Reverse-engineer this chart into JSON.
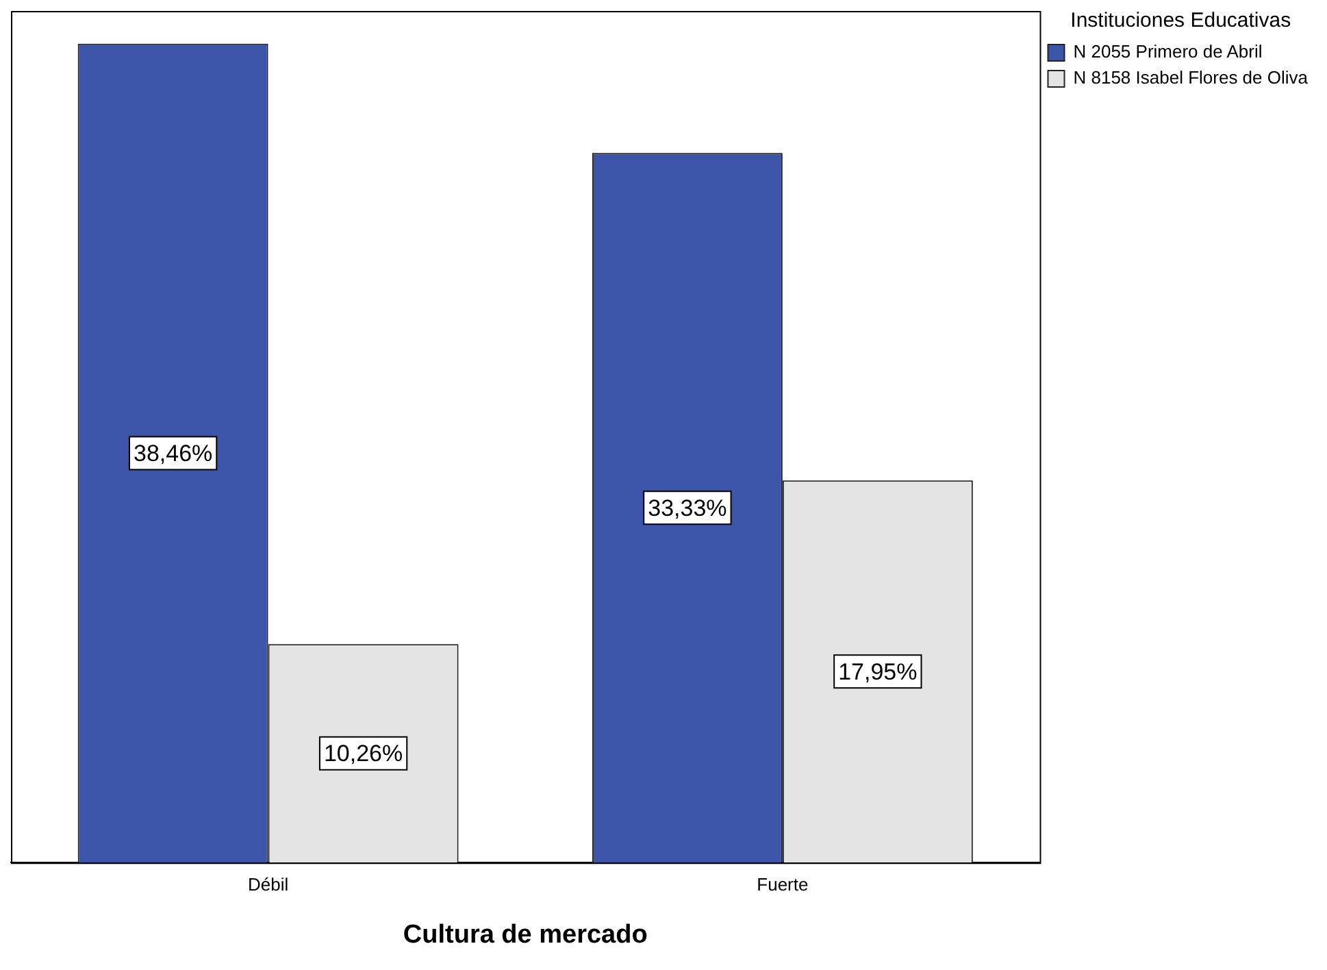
{
  "chart_data": {
    "type": "bar",
    "xlabel": "Cultura de mercado",
    "legend_title": "Instituciones Educativas",
    "categories": [
      "Débil",
      "Fuerte"
    ],
    "series": [
      {
        "name": "N 2055 Primero de Abril",
        "color": "#3c55a8",
        "values": [
          38.46,
          33.33
        ],
        "value_labels": [
          "38,46%",
          "33,33%"
        ]
      },
      {
        "name": "N 8158 Isabel Flores de Oliva",
        "color": "#e4e4e4",
        "values": [
          10.26,
          17.95
        ],
        "value_labels": [
          "10,26%",
          "17,95%"
        ]
      }
    ],
    "legend": "top right",
    "grid": false
  }
}
